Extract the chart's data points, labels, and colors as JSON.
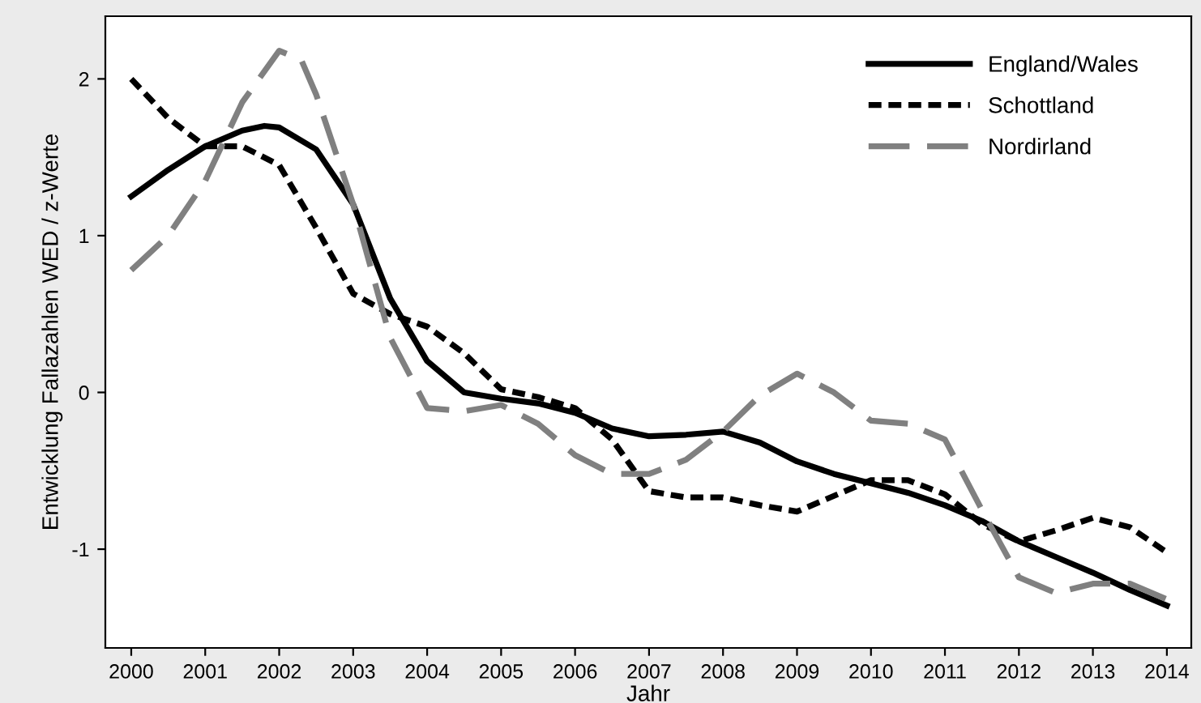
{
  "chart_data": {
    "type": "line",
    "xlabel": "Jahr",
    "ylabel": "Entwicklung Fallazahlen WED / z-Werte",
    "xlim": [
      1999.65,
      2014.33
    ],
    "ylim": [
      -1.63,
      2.4
    ],
    "xticks": [
      2000,
      2001,
      2002,
      2003,
      2004,
      2005,
      2006,
      2007,
      2008,
      2009,
      2010,
      2011,
      2012,
      2013,
      2014
    ],
    "yticks": [
      -1,
      0,
      1,
      2
    ],
    "grid": false,
    "legend": "top right",
    "marker": "none",
    "series": [
      {
        "name": "England/Wales",
        "color": "#000000",
        "line_style": "solid",
        "x": [
          2000,
          2000.5,
          2001,
          2001.5,
          2001.8,
          2002,
          2002.5,
          2003,
          2003.5,
          2004,
          2004.5,
          2005,
          2005.5,
          2006,
          2006.5,
          2007,
          2007.5,
          2008,
          2008.5,
          2009,
          2009.5,
          2010,
          2010.5,
          2011,
          2011.5,
          2012,
          2012.5,
          2013,
          2013.5,
          2014
        ],
        "values": [
          1.25,
          1.42,
          1.57,
          1.67,
          1.7,
          1.69,
          1.55,
          1.2,
          0.6,
          0.2,
          0.0,
          -0.04,
          -0.07,
          -0.13,
          -0.23,
          -0.28,
          -0.27,
          -0.25,
          -0.32,
          -0.44,
          -0.52,
          -0.58,
          -0.64,
          -0.72,
          -0.82,
          -0.95,
          -1.05,
          -1.15,
          -1.26,
          -1.36
        ]
      },
      {
        "name": "Schottland",
        "color": "#000000",
        "line_style": "dotted",
        "x": [
          2000,
          2000.5,
          2001,
          2001.5,
          2002,
          2002.5,
          2003,
          2003.5,
          2004,
          2004.5,
          2005,
          2005.5,
          2006,
          2006.5,
          2007,
          2007.5,
          2008,
          2008.5,
          2009,
          2009.5,
          2010,
          2010.5,
          2011,
          2011.5,
          2012,
          2012.5,
          2013,
          2013.5,
          2014
        ],
        "values": [
          2.0,
          1.75,
          1.57,
          1.57,
          1.45,
          1.05,
          0.63,
          0.5,
          0.42,
          0.25,
          0.02,
          -0.03,
          -0.1,
          -0.3,
          -0.63,
          -0.67,
          -0.67,
          -0.72,
          -0.76,
          -0.66,
          -0.56,
          -0.56,
          -0.65,
          -0.84,
          -0.95,
          -0.88,
          -0.8,
          -0.86,
          -1.02
        ]
      },
      {
        "name": "Nordirland",
        "color": "#808080",
        "line_style": "dashed",
        "x": [
          2000,
          2000.5,
          2001,
          2001.5,
          2002,
          2002.3,
          2002.5,
          2003,
          2003.5,
          2004,
          2004.5,
          2005,
          2005.5,
          2006,
          2006.5,
          2007,
          2007.5,
          2008,
          2008.5,
          2009,
          2009.5,
          2010,
          2010.5,
          2011,
          2011.5,
          2012,
          2012.5,
          2013,
          2013.5,
          2014
        ],
        "values": [
          0.78,
          1.0,
          1.35,
          1.85,
          2.18,
          2.12,
          1.9,
          1.2,
          0.35,
          -0.1,
          -0.12,
          -0.08,
          -0.2,
          -0.4,
          -0.52,
          -0.52,
          -0.43,
          -0.25,
          -0.02,
          0.12,
          0.0,
          -0.18,
          -0.2,
          -0.3,
          -0.75,
          -1.18,
          -1.28,
          -1.22,
          -1.22,
          -1.32
        ]
      }
    ]
  }
}
